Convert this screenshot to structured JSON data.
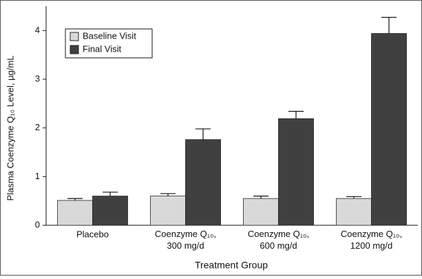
{
  "chart_data": {
    "type": "bar",
    "x_label": "Treatment Group",
    "y_label": "Plasma Coenzyme Q₁₀ Level, µg/mL",
    "categories": [
      "Placebo",
      "Coenzyme Q₁₀, 300 mg/d",
      "Coenzyme Q₁₀, 600 mg/d",
      "Coenzyme Q₁₀, 1200 mg/d"
    ],
    "series": [
      {
        "name": "Baseline Visit",
        "color": "#d9d9d9",
        "values": [
          0.51,
          0.6,
          0.55,
          0.55
        ],
        "errors": [
          0.04,
          0.05,
          0.05,
          0.04
        ]
      },
      {
        "name": "Final Visit",
        "color": "#404040",
        "values": [
          0.6,
          1.76,
          2.19,
          3.94
        ],
        "errors": [
          0.08,
          0.22,
          0.15,
          0.33
        ]
      }
    ],
    "ylim": [
      0,
      4.5
    ],
    "yticks": [
      0,
      1,
      2,
      3,
      4
    ],
    "legend": "upper left"
  }
}
